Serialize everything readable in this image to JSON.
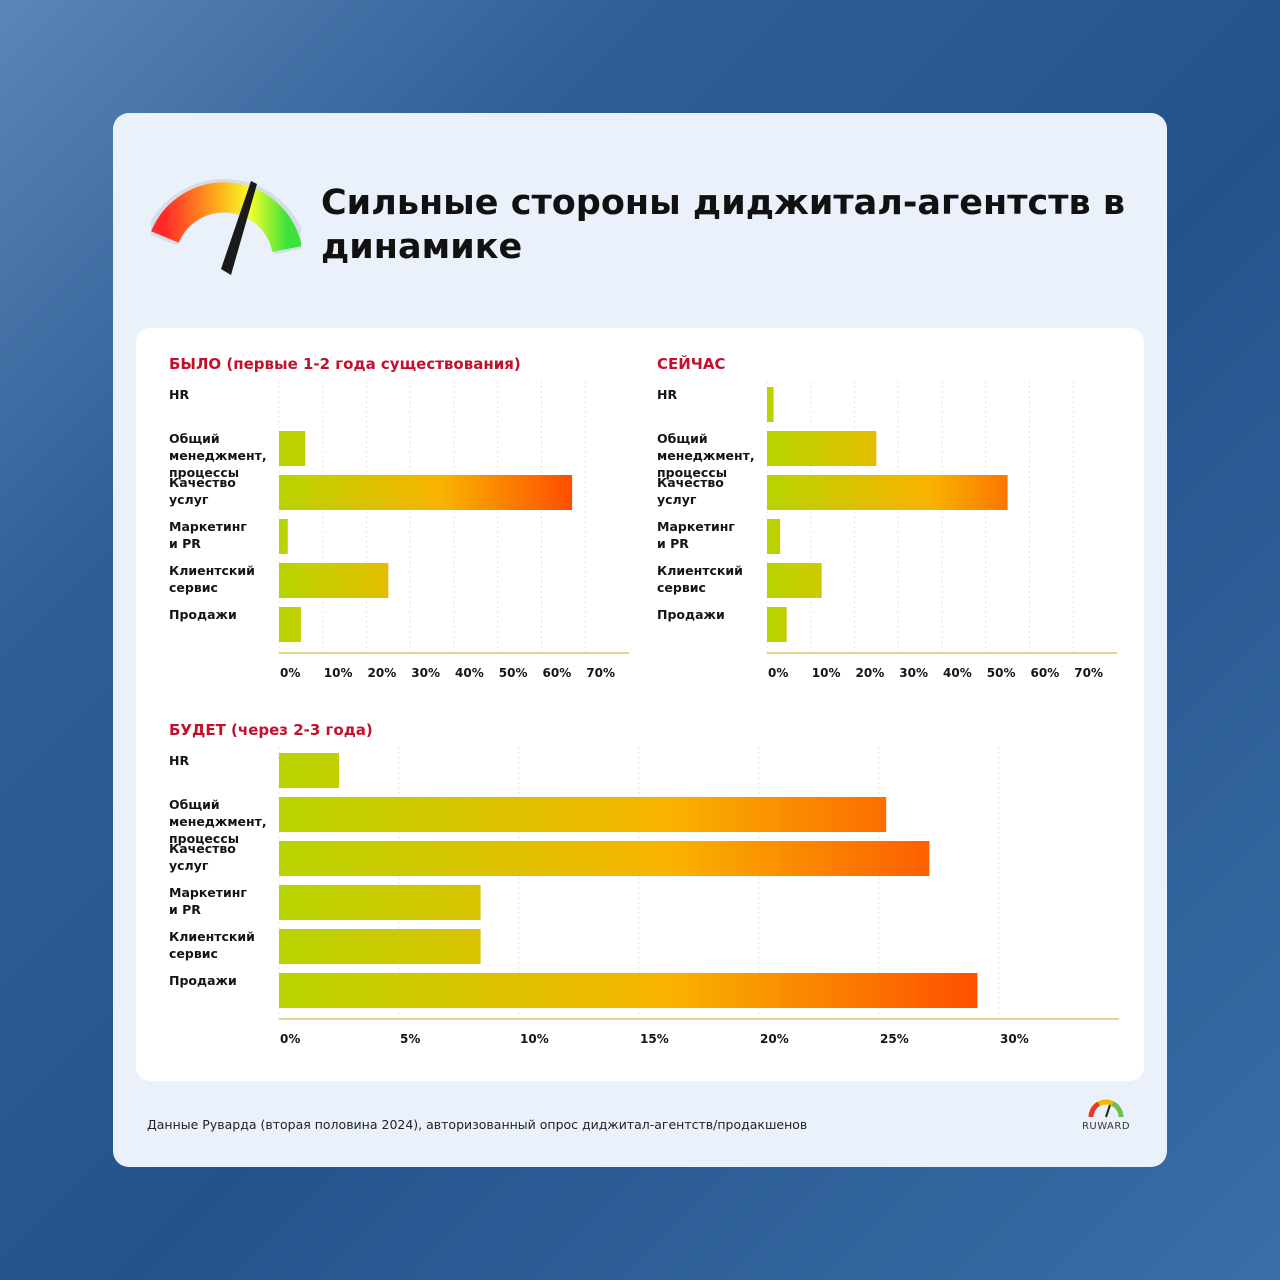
{
  "title": "Сильные стороны диджитал-агентств в динамике",
  "footer": "Данные Руварда (вторая половина 2024), авторизованный опрос диджитал-агентств/продакшенов",
  "logo": {
    "text": "RUWARD",
    "icon": "gauge-icon"
  },
  "colors": {
    "accent": "#c3102c",
    "bar_start": "#b8d400",
    "bar_mid": "#f9b200",
    "bar_end": "#ff4a00"
  },
  "chart_data": [
    {
      "type": "bar",
      "orientation": "horizontal",
      "title": "БЫЛО (первые 1-2 года существования)",
      "categories": [
        "HR",
        "Общий менеджмент, процессы",
        "Качество услуг",
        "Маркетинг и PR",
        "Клиентский сервис",
        "Продажи"
      ],
      "category_lines": [
        [
          "HR"
        ],
        [
          "Общий",
          "менеджмент,",
          "процессы"
        ],
        [
          "Качество",
          "услуг"
        ],
        [
          "Маркетинг",
          "и PR"
        ],
        [
          "Клиентский",
          "сервис"
        ],
        [
          "Продажи"
        ]
      ],
      "values": [
        0,
        6,
        67,
        2,
        25,
        5
      ],
      "xlim": [
        0,
        80
      ],
      "ticks": [
        0,
        10,
        20,
        30,
        40,
        50,
        60,
        70
      ],
      "tick_labels": [
        "0%",
        "10%",
        "20%",
        "30%",
        "40%",
        "50%",
        "60%",
        "70%"
      ],
      "grid": true
    },
    {
      "type": "bar",
      "orientation": "horizontal",
      "title": "СЕЙЧАС",
      "categories": [
        "HR",
        "Общий менеджмент, процессы",
        "Качество услуг",
        "Маркетинг и PR",
        "Клиентский сервис",
        "Продажи"
      ],
      "category_lines": [
        [
          "HR"
        ],
        [
          "Общий",
          "менеджмент,",
          "процессы"
        ],
        [
          "Качество",
          "услуг"
        ],
        [
          "Маркетинг",
          "и PR"
        ],
        [
          "Клиентский",
          "сервис"
        ],
        [
          "Продажи"
        ]
      ],
      "values": [
        1.5,
        25,
        55,
        3,
        12.5,
        4.5
      ],
      "xlim": [
        0,
        80
      ],
      "ticks": [
        0,
        10,
        20,
        30,
        40,
        50,
        60,
        70
      ],
      "tick_labels": [
        "0%",
        "10%",
        "20%",
        "30%",
        "40%",
        "50%",
        "60%",
        "70%"
      ],
      "grid": true
    },
    {
      "type": "bar",
      "orientation": "horizontal",
      "title": "БУДЕТ (через 2-3 года)",
      "categories": [
        "HR",
        "Общий менеджмент, процессы",
        "Качество услуг",
        "Маркетинг и PR",
        "Клиентский сервис",
        "Продажи"
      ],
      "category_lines": [
        [
          "HR"
        ],
        [
          "Общий",
          "менеджмент,",
          "процессы"
        ],
        [
          "Качество",
          "услуг"
        ],
        [
          "Маркетинг",
          "и PR"
        ],
        [
          "Клиентский",
          "сервис"
        ],
        [
          "Продажи"
        ]
      ],
      "values": [
        2.5,
        25.3,
        27.1,
        8.4,
        8.4,
        29.1
      ],
      "xlim": [
        0,
        35
      ],
      "ticks": [
        0,
        5,
        10,
        15,
        20,
        25,
        30
      ],
      "tick_labels": [
        "0%",
        "5%",
        "10%",
        "15%",
        "20%",
        "25%",
        "30%"
      ],
      "grid": true
    }
  ]
}
